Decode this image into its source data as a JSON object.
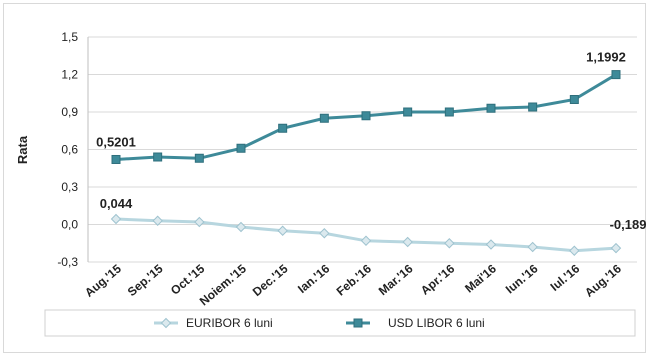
{
  "chart_data": {
    "type": "line",
    "ylabel": "Rata",
    "ylim": [
      -0.3,
      1.5
    ],
    "yticks": [
      "-0,3",
      "0,0",
      "0,3",
      "0,6",
      "0,9",
      "1,2",
      "1,5"
    ],
    "ytick_values": [
      -0.3,
      0.0,
      0.3,
      0.6,
      0.9,
      1.2,
      1.5
    ],
    "grid": true,
    "legend_position": "bottom",
    "categories": [
      "Aug.'15",
      "Sep.'15",
      "Oct.'15",
      "Noiem.'15",
      "Dec.'15",
      "Ian.'16",
      "Feb.'16",
      "Mar.'16",
      "Apr.'16",
      "Mai'16",
      "Iun.'16",
      "Iul.'16",
      "Aug.'16"
    ],
    "series": [
      {
        "name": "EURIBOR 6 luni",
        "color": "#b7d6df",
        "marker": "diamond",
        "values": [
          0.044,
          0.03,
          0.02,
          -0.02,
          -0.05,
          -0.07,
          -0.13,
          -0.14,
          -0.15,
          -0.16,
          -0.18,
          -0.21,
          -0.189
        ]
      },
      {
        "name": "USD LIBOR 6 luni",
        "color": "#3e8a99",
        "marker": "square",
        "values": [
          0.5201,
          0.54,
          0.53,
          0.61,
          0.77,
          0.85,
          0.87,
          0.9,
          0.9,
          0.93,
          0.94,
          1.0,
          1.1992
        ]
      }
    ],
    "data_labels": [
      {
        "series": 1,
        "index": 0,
        "text": "0,5201"
      },
      {
        "series": 1,
        "index": 12,
        "text": "1,1992"
      },
      {
        "series": 0,
        "index": 0,
        "text": "0,044"
      },
      {
        "series": 0,
        "index": 12,
        "text": "-0,189"
      }
    ]
  }
}
